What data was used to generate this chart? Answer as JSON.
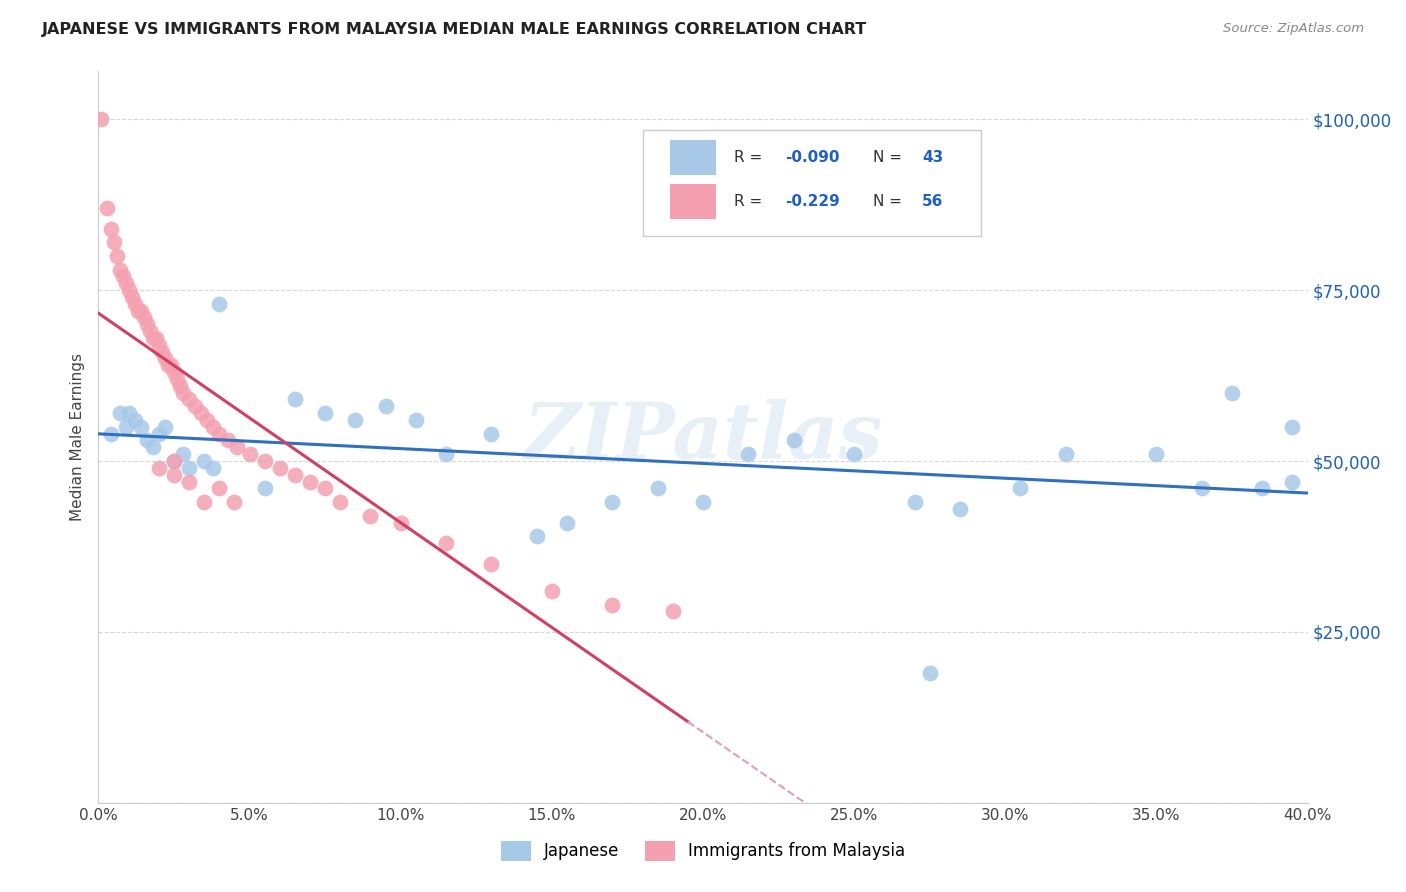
{
  "title": "JAPANESE VS IMMIGRANTS FROM MALAYSIA MEDIAN MALE EARNINGS CORRELATION CHART",
  "source": "Source: ZipAtlas.com",
  "ylabel": "Median Male Earnings",
  "yticks": [
    0,
    25000,
    50000,
    75000,
    100000
  ],
  "ytick_labels": [
    "",
    "$25,000",
    "$50,000",
    "$75,000",
    "$100,000"
  ],
  "xmin": 0.0,
  "xmax": 0.4,
  "ymin": 0,
  "ymax": 107000,
  "watermark": "ZIPatlas",
  "legend_label1": "Japanese",
  "legend_label2": "Immigrants from Malaysia",
  "blue_color": "#a8c8e8",
  "pink_color": "#f4a0b0",
  "blue_line_color": "#3070c0",
  "pink_line_color": "#d04060",
  "dashed_line_color": "#e0a0b0",
  "grid_color": "#d8d8d8",
  "blue_x": [
    0.004,
    0.007,
    0.009,
    0.01,
    0.012,
    0.014,
    0.016,
    0.018,
    0.02,
    0.022,
    0.025,
    0.028,
    0.03,
    0.035,
    0.038,
    0.04,
    0.055,
    0.065,
    0.075,
    0.085,
    0.095,
    0.105,
    0.115,
    0.13,
    0.145,
    0.155,
    0.17,
    0.185,
    0.2,
    0.215,
    0.23,
    0.25,
    0.27,
    0.285,
    0.305,
    0.32,
    0.35,
    0.365,
    0.375,
    0.385,
    0.395,
    0.395,
    0.275
  ],
  "blue_y": [
    54000,
    57000,
    55000,
    57000,
    56000,
    55000,
    53000,
    52000,
    54000,
    55000,
    50000,
    51000,
    49000,
    50000,
    49000,
    73000,
    46000,
    59000,
    57000,
    56000,
    58000,
    56000,
    51000,
    54000,
    39000,
    41000,
    44000,
    46000,
    44000,
    51000,
    53000,
    51000,
    44000,
    43000,
    46000,
    51000,
    51000,
    46000,
    60000,
    46000,
    55000,
    47000,
    19000
  ],
  "pink_x": [
    0.001,
    0.003,
    0.004,
    0.005,
    0.006,
    0.007,
    0.008,
    0.009,
    0.01,
    0.011,
    0.012,
    0.013,
    0.014,
    0.015,
    0.016,
    0.017,
    0.018,
    0.019,
    0.02,
    0.021,
    0.022,
    0.023,
    0.024,
    0.025,
    0.026,
    0.027,
    0.028,
    0.03,
    0.032,
    0.034,
    0.036,
    0.038,
    0.04,
    0.043,
    0.046,
    0.05,
    0.055,
    0.06,
    0.065,
    0.07,
    0.075,
    0.08,
    0.09,
    0.1,
    0.115,
    0.13,
    0.15,
    0.17,
    0.19,
    0.03,
    0.025,
    0.02,
    0.025,
    0.035,
    0.04,
    0.045
  ],
  "pink_y": [
    100000,
    87000,
    84000,
    82000,
    80000,
    78000,
    77000,
    76000,
    75000,
    74000,
    73000,
    72000,
    72000,
    71000,
    70000,
    69000,
    68000,
    68000,
    67000,
    66000,
    65000,
    64000,
    64000,
    63000,
    62000,
    61000,
    60000,
    59000,
    58000,
    57000,
    56000,
    55000,
    54000,
    53000,
    52000,
    51000,
    50000,
    49000,
    48000,
    47000,
    46000,
    44000,
    42000,
    41000,
    38000,
    35000,
    31000,
    29000,
    28000,
    47000,
    48000,
    49000,
    50000,
    44000,
    46000,
    44000
  ]
}
